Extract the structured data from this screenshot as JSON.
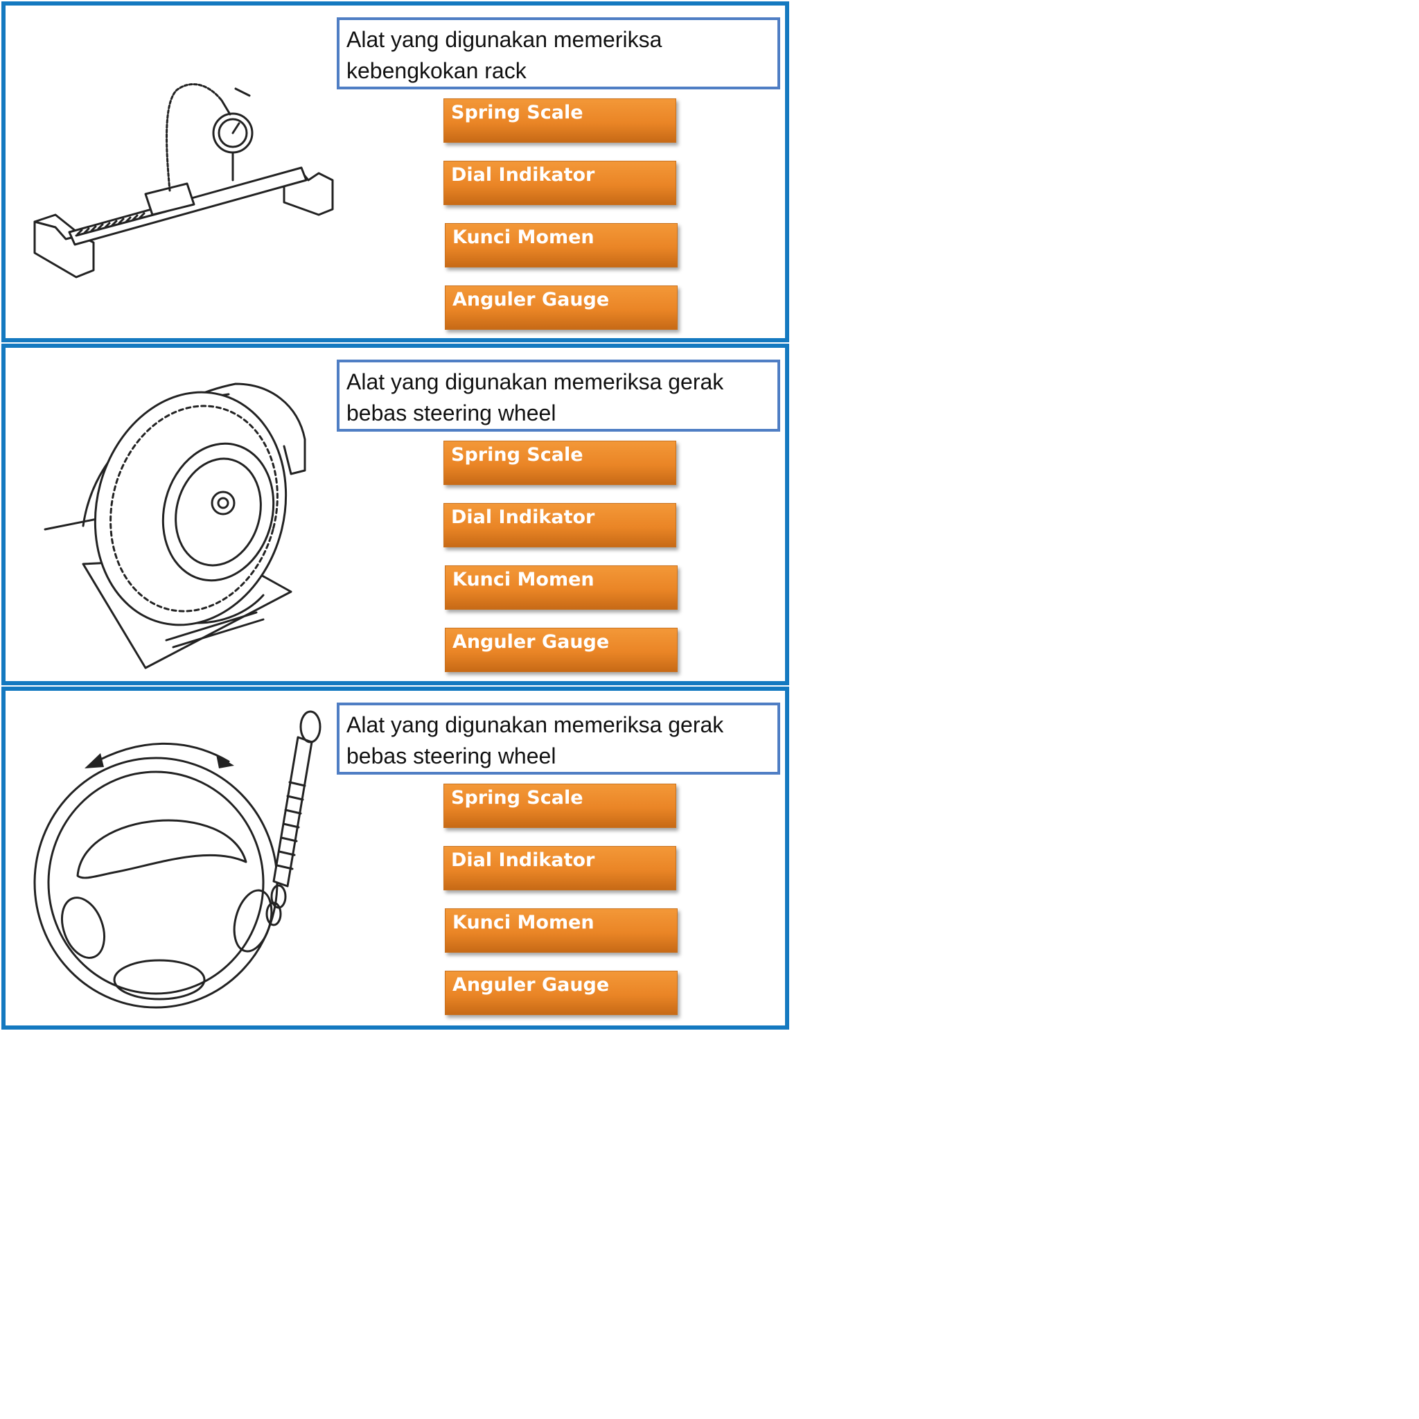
{
  "questions": [
    {
      "prompt": "Alat yang digunakan  memeriksa kebengkokan rack",
      "options": [
        "Spring Scale",
        "Dial Indikator",
        "Kunci Momen",
        "Anguler Gauge"
      ]
    },
    {
      "prompt": "Alat yang digunakan  memeriksa gerak bebas steering wheel",
      "options": [
        "Spring Scale",
        "Dial Indikator",
        "Kunci Momen",
        "Anguler Gauge"
      ]
    },
    {
      "prompt": "Alat yang digunakan  memeriksa gerak bebas steering wheel",
      "options": [
        "Spring Scale",
        "Dial Indikator",
        "Kunci Momen",
        "Anguler Gauge"
      ]
    }
  ],
  "colors": {
    "panel_border": "#1479c0",
    "question_border": "#4f7ec4",
    "option_fill": "#ea8526",
    "option_text": "#ffffff"
  },
  "icons": [
    "rack-dial-gauge-illustration",
    "wheel-turning-radius-gauge-illustration",
    "steering-wheel-spring-scale-illustration"
  ]
}
